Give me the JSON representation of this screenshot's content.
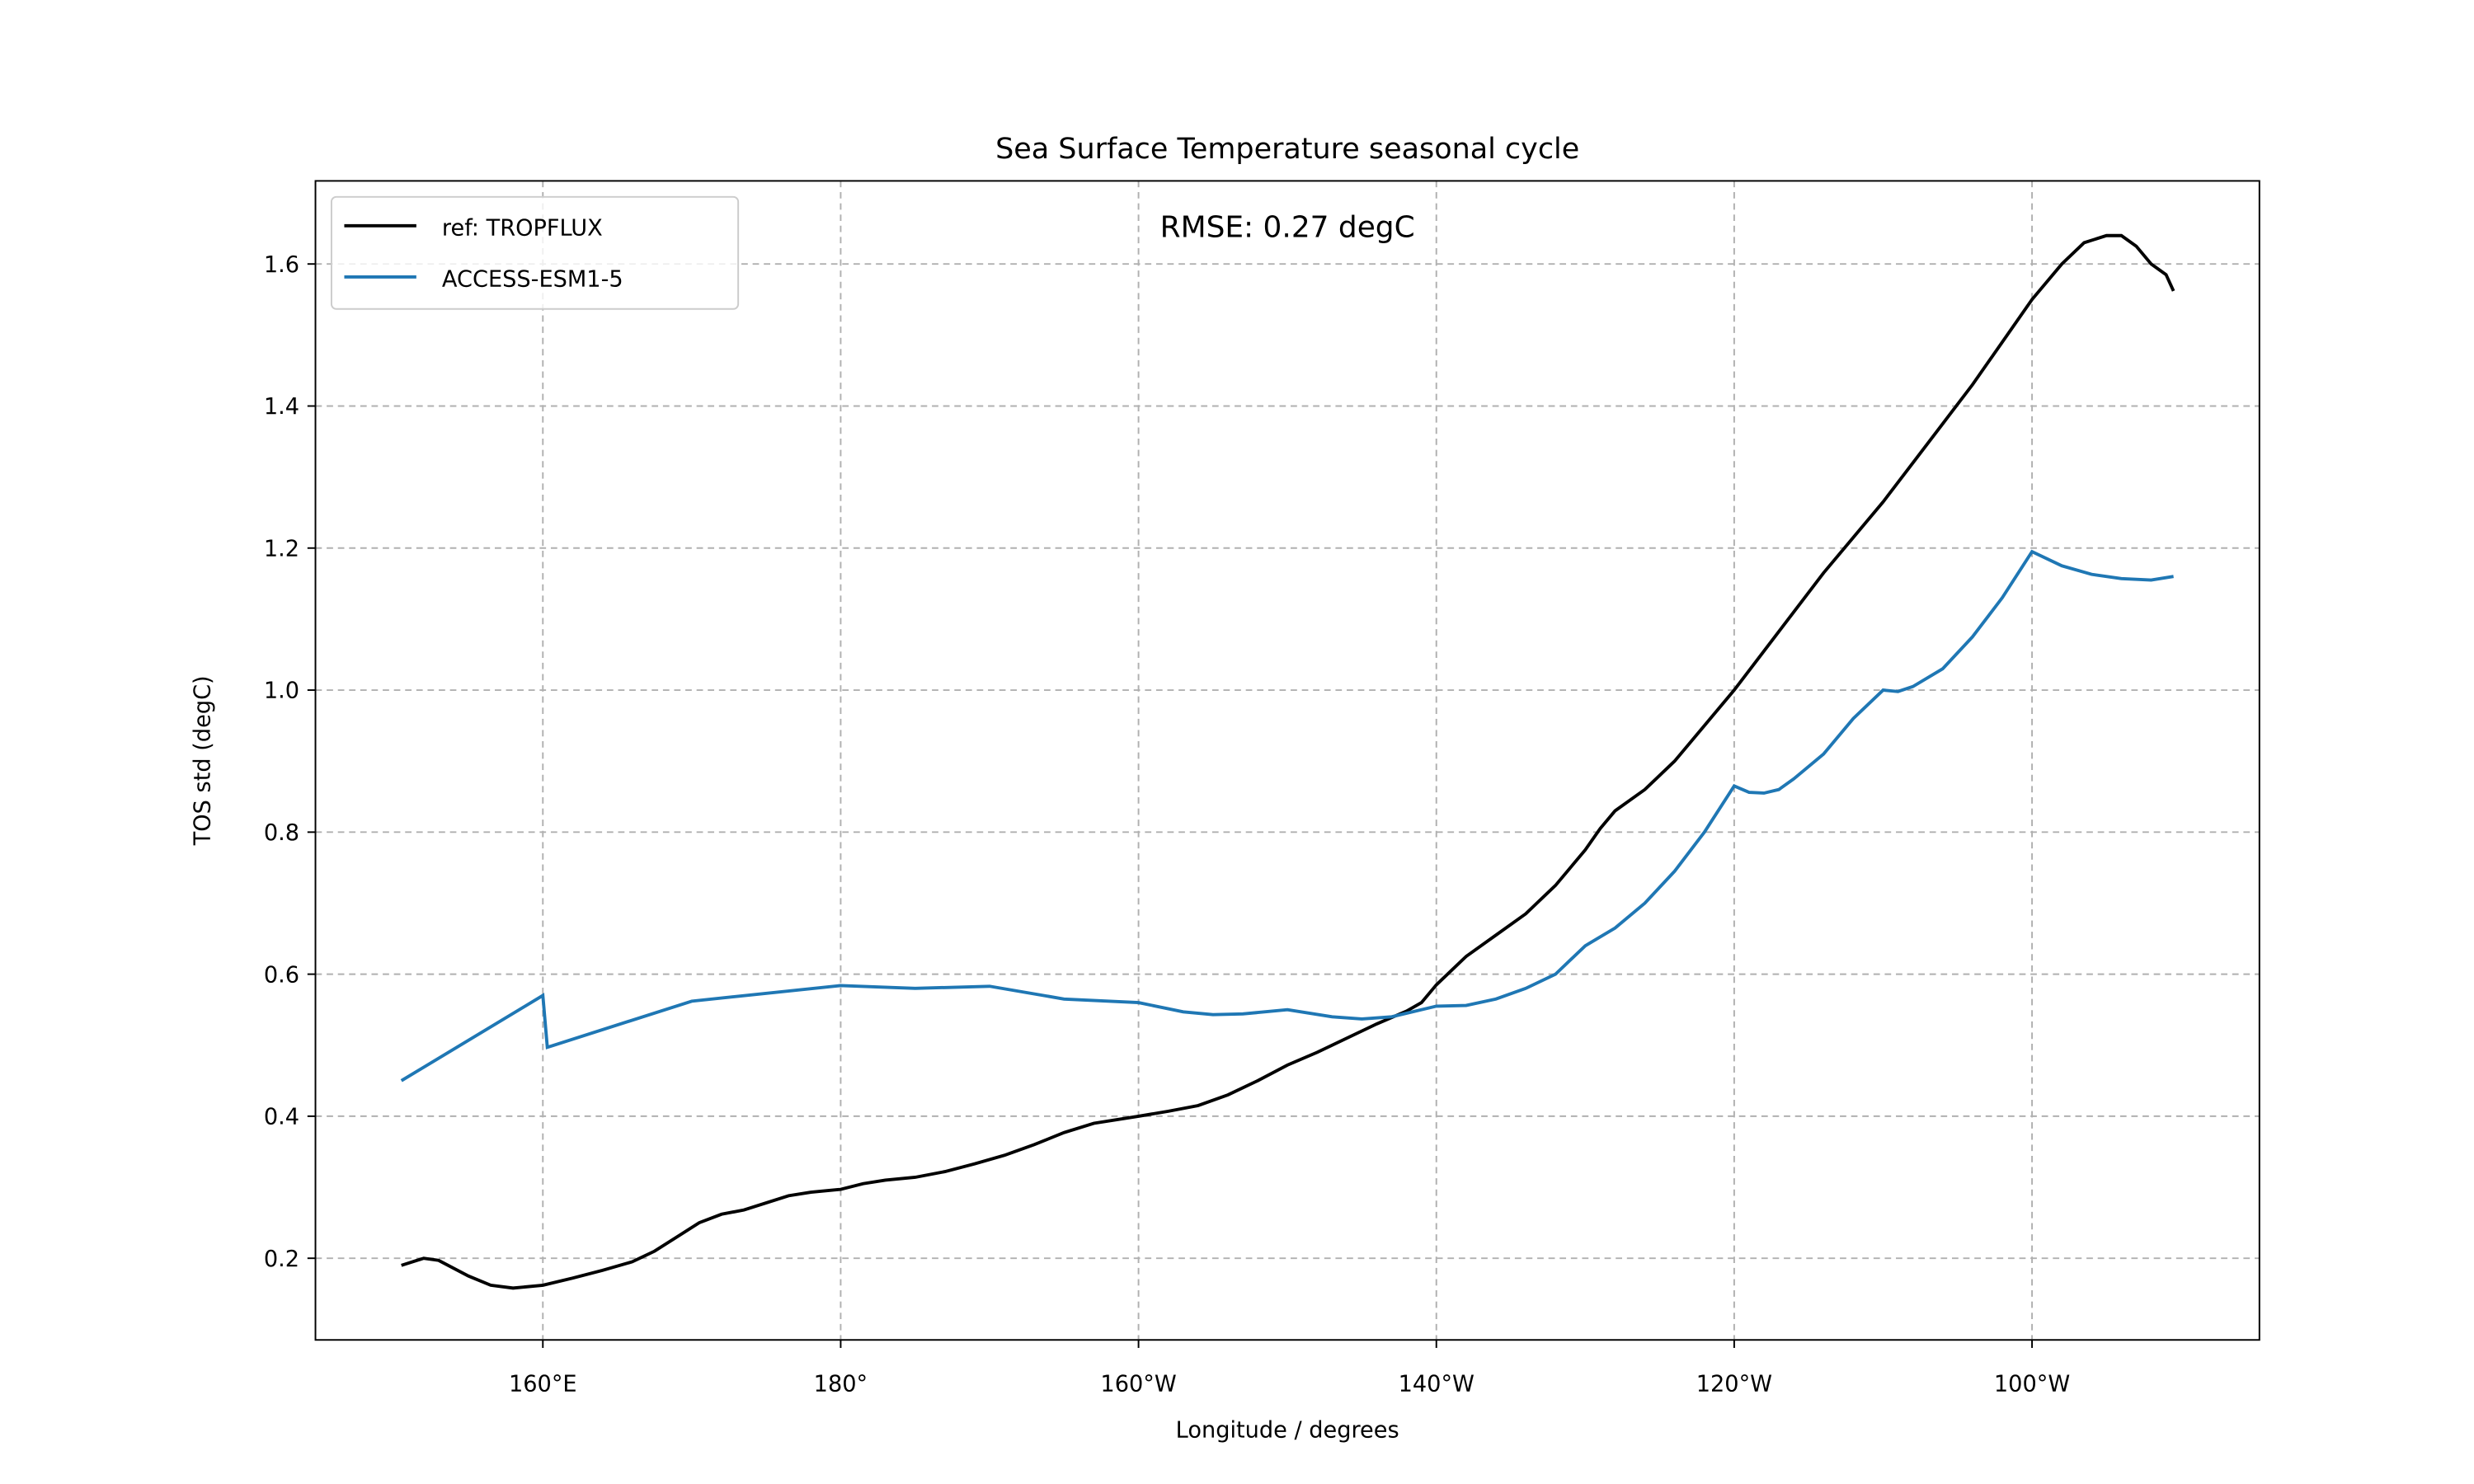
{
  "chart_data": {
    "type": "line",
    "title": "Sea Surface Temperature seasonal cycle",
    "annotation": "RMSE: 0.27 degC",
    "xlabel": "Longitude / degrees",
    "ylabel": "TOS std (degC)",
    "xlim": [
      144.73,
      275.27
    ],
    "ylim": [
      0.085,
      1.717
    ],
    "xticks": [
      {
        "value": 160,
        "label": "160°E"
      },
      {
        "value": 180,
        "label": "180°"
      },
      {
        "value": 200,
        "label": "160°W"
      },
      {
        "value": 220,
        "label": "140°W"
      },
      {
        "value": 240,
        "label": "120°W"
      },
      {
        "value": 260,
        "label": "100°W"
      }
    ],
    "yticks": [
      0.2,
      0.4,
      0.6,
      0.8,
      {
        "value": 1,
        "label": "1.0"
      },
      1.2,
      1.4,
      1.6
    ],
    "grid": true,
    "legend": "upper left",
    "series": [
      {
        "name": "ref: TROPFLUX",
        "color": "#000000",
        "x": [
          150.5,
          152,
          153,
          155,
          156.5,
          158,
          160,
          162,
          164,
          166,
          167.5,
          169,
          170.5,
          172,
          173.5,
          175,
          176.5,
          178,
          180,
          181.5,
          183,
          185,
          187,
          189,
          191,
          193,
          195,
          197,
          200,
          202,
          204,
          206,
          208,
          210,
          212,
          214,
          216,
          218,
          219,
          220,
          221,
          222,
          224,
          226,
          228,
          230,
          231,
          232,
          233,
          234,
          235,
          236,
          238,
          240,
          242,
          244,
          246,
          248,
          250,
          252,
          254,
          256,
          258,
          260,
          262,
          263.5,
          265,
          266,
          267,
          268,
          269,
          269.5
        ],
        "values": [
          0.19,
          0.2,
          0.197,
          0.175,
          0.162,
          0.158,
          0.162,
          0.172,
          0.183,
          0.195,
          0.21,
          0.23,
          0.25,
          0.262,
          0.268,
          0.278,
          0.288,
          0.293,
          0.297,
          0.305,
          0.31,
          0.314,
          0.322,
          0.333,
          0.345,
          0.36,
          0.377,
          0.39,
          0.4,
          0.407,
          0.415,
          0.43,
          0.45,
          0.472,
          0.49,
          0.51,
          0.53,
          0.548,
          0.56,
          0.585,
          0.605,
          0.625,
          0.655,
          0.685,
          0.725,
          0.775,
          0.805,
          0.83,
          0.845,
          0.86,
          0.88,
          0.9,
          0.95,
          1.0,
          1.055,
          1.11,
          1.165,
          1.215,
          1.265,
          1.32,
          1.375,
          1.43,
          1.49,
          1.55,
          1.6,
          1.63,
          1.64,
          1.64,
          1.625,
          1.6,
          1.585,
          1.562
        ]
      },
      {
        "name": "ACCESS-ESM1-5",
        "color": "#1f77b4",
        "x": [
          150.5,
          160,
          160.3,
          170,
          180,
          185,
          190,
          195,
          200,
          203,
          205,
          207,
          210,
          213,
          215,
          217,
          220,
          222,
          224,
          226,
          228,
          230,
          232,
          234,
          236,
          238,
          240,
          241,
          242,
          243,
          244,
          246,
          248,
          250,
          251,
          252,
          254,
          256,
          258,
          260,
          262,
          264,
          266,
          268,
          269.5
        ],
        "values": [
          0.45,
          0.57,
          0.497,
          0.562,
          0.584,
          0.58,
          0.583,
          0.565,
          0.56,
          0.547,
          0.543,
          0.544,
          0.55,
          0.54,
          0.537,
          0.54,
          0.555,
          0.556,
          0.565,
          0.58,
          0.6,
          0.64,
          0.665,
          0.7,
          0.745,
          0.8,
          0.865,
          0.856,
          0.855,
          0.86,
          0.875,
          0.91,
          0.96,
          1.0,
          0.998,
          1.005,
          1.03,
          1.075,
          1.13,
          1.195,
          1.175,
          1.163,
          1.157,
          1.155,
          1.16
        ]
      }
    ]
  }
}
